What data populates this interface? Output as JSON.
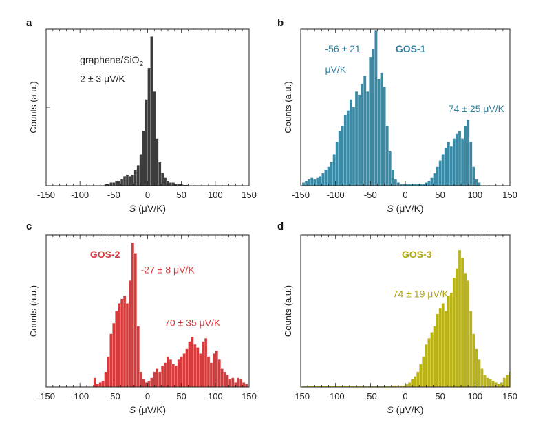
{
  "chart_data": [
    {
      "panel_label": "a",
      "type": "bar",
      "color": "#3c3c3c",
      "xlabel_italic": "S",
      "xlabel_rest": " (μV/K)",
      "ylabel": "Counts (a.u.)",
      "xlim": [
        -150,
        150
      ],
      "xticks": [
        -150,
        -100,
        -50,
        0,
        50,
        100,
        150
      ],
      "ylim": [
        0,
        1.0
      ],
      "bin_width": 4,
      "annotations": [
        {
          "text": "graphene/SiO",
          "sub": "2",
          "color": "#222222",
          "x": -100,
          "y": 0.78
        },
        {
          "text": "2 ± 3 μV/K",
          "color": "#222222",
          "x": -100,
          "y": 0.66
        }
      ],
      "bins": [
        [
          -62,
          0.01
        ],
        [
          -58,
          0.01
        ],
        [
          -54,
          0.02
        ],
        [
          -50,
          0.02
        ],
        [
          -46,
          0.03
        ],
        [
          -42,
          0.03
        ],
        [
          -38,
          0.04
        ],
        [
          -34,
          0.06
        ],
        [
          -30,
          0.07
        ],
        [
          -26,
          0.06
        ],
        [
          -22,
          0.07
        ],
        [
          -18,
          0.1
        ],
        [
          -14,
          0.13
        ],
        [
          -10,
          0.2
        ],
        [
          -6,
          0.35
        ],
        [
          -2,
          0.55
        ],
        [
          2,
          0.75
        ],
        [
          6,
          0.95
        ],
        [
          10,
          0.6
        ],
        [
          14,
          0.3
        ],
        [
          18,
          0.15
        ],
        [
          22,
          0.08
        ],
        [
          26,
          0.05
        ],
        [
          30,
          0.03
        ],
        [
          34,
          0.02
        ],
        [
          38,
          0.02
        ],
        [
          42,
          0.01
        ],
        [
          46,
          0.01
        ],
        [
          50,
          0.01
        ],
        [
          54,
          0.005
        ],
        [
          58,
          0.005
        ]
      ]
    },
    {
      "panel_label": "b",
      "type": "bar",
      "color": "#3a8aa6",
      "xlabel_italic": "S",
      "xlabel_rest": " (μV/K)",
      "ylabel": "Counts (a.u.)",
      "xlim": [
        -150,
        150
      ],
      "xticks": [
        -150,
        -100,
        -50,
        0,
        50,
        100,
        150
      ],
      "ylim": [
        0,
        1.0
      ],
      "bin_width": 4,
      "annotations": [
        {
          "text": "GOS-1",
          "color": "#2f7f9c",
          "bold": true,
          "x": -14,
          "y": 0.85
        },
        {
          "text": "-56 ± 21",
          "color": "#2f7f9c",
          "x": -115,
          "y": 0.85
        },
        {
          "text": "μV/K",
          "color": "#2f7f9c",
          "x": -115,
          "y": 0.72
        },
        {
          "text": "74 ± 25 μV/K",
          "color": "#2f7f9c",
          "x": 62,
          "y": 0.47
        }
      ],
      "bins": [
        [
          -146,
          0.02
        ],
        [
          -142,
          0.03
        ],
        [
          -138,
          0.04
        ],
        [
          -134,
          0.05
        ],
        [
          -130,
          0.04
        ],
        [
          -126,
          0.05
        ],
        [
          -122,
          0.06
        ],
        [
          -118,
          0.08
        ],
        [
          -114,
          0.1
        ],
        [
          -110,
          0.12
        ],
        [
          -106,
          0.15
        ],
        [
          -102,
          0.2
        ],
        [
          -98,
          0.28
        ],
        [
          -94,
          0.35
        ],
        [
          -90,
          0.38
        ],
        [
          -86,
          0.45
        ],
        [
          -82,
          0.48
        ],
        [
          -78,
          0.55
        ],
        [
          -74,
          0.5
        ],
        [
          -70,
          0.6
        ],
        [
          -66,
          0.58
        ],
        [
          -62,
          0.65
        ],
        [
          -58,
          0.7
        ],
        [
          -54,
          0.6
        ],
        [
          -50,
          0.82
        ],
        [
          -46,
          0.87
        ],
        [
          -42,
          0.99
        ],
        [
          -38,
          0.68
        ],
        [
          -34,
          0.72
        ],
        [
          -30,
          0.63
        ],
        [
          -26,
          0.38
        ],
        [
          -22,
          0.22
        ],
        [
          -18,
          0.1
        ],
        [
          -14,
          0.04
        ],
        [
          -10,
          0.02
        ],
        [
          -6,
          0.01
        ],
        [
          -2,
          0.01
        ],
        [
          2,
          0.01
        ],
        [
          6,
          0.01
        ],
        [
          10,
          0.01
        ],
        [
          14,
          0.01
        ],
        [
          18,
          0.01
        ],
        [
          22,
          0.01
        ],
        [
          26,
          0.01
        ],
        [
          30,
          0.02
        ],
        [
          34,
          0.03
        ],
        [
          38,
          0.05
        ],
        [
          42,
          0.08
        ],
        [
          46,
          0.12
        ],
        [
          50,
          0.16
        ],
        [
          54,
          0.2
        ],
        [
          58,
          0.24
        ],
        [
          62,
          0.28
        ],
        [
          66,
          0.25
        ],
        [
          70,
          0.3
        ],
        [
          74,
          0.33
        ],
        [
          78,
          0.35
        ],
        [
          82,
          0.3
        ],
        [
          86,
          0.38
        ],
        [
          90,
          0.42
        ],
        [
          94,
          0.28
        ],
        [
          98,
          0.12
        ],
        [
          102,
          0.04
        ],
        [
          106,
          0.02
        ]
      ]
    },
    {
      "panel_label": "c",
      "type": "bar",
      "color": "#d53a3c",
      "xlabel_italic": "S",
      "xlabel_rest": " (μV/K)",
      "ylabel": "Counts (a.u.)",
      "xlim": [
        -150,
        150
      ],
      "xticks": [
        -150,
        -100,
        -50,
        0,
        50,
        100,
        150
      ],
      "ylim": [
        0,
        1.0
      ],
      "bin_width": 4,
      "annotations": [
        {
          "text": "GOS-2",
          "color": "#d53a3c",
          "bold": true,
          "x": -85,
          "y": 0.85
        },
        {
          "text": "-27 ± 8 μV/K",
          "color": "#d53a3c",
          "x": -10,
          "y": 0.75
        },
        {
          "text": "70 ± 35 μV/K",
          "color": "#d53a3c",
          "x": 25,
          "y": 0.4
        }
      ],
      "bins": [
        [
          -78,
          0.06
        ],
        [
          -74,
          0.02
        ],
        [
          -70,
          0.03
        ],
        [
          -66,
          0.04
        ],
        [
          -62,
          0.1
        ],
        [
          -58,
          0.2
        ],
        [
          -54,
          0.35
        ],
        [
          -50,
          0.42
        ],
        [
          -46,
          0.5
        ],
        [
          -42,
          0.55
        ],
        [
          -38,
          0.58
        ],
        [
          -34,
          0.6
        ],
        [
          -30,
          0.55
        ],
        [
          -26,
          0.7
        ],
        [
          -22,
          0.95
        ],
        [
          -18,
          0.88
        ],
        [
          -14,
          0.4
        ],
        [
          -10,
          0.1
        ],
        [
          -6,
          0.05
        ],
        [
          -2,
          0.03
        ],
        [
          2,
          0.04
        ],
        [
          6,
          0.06
        ],
        [
          10,
          0.1
        ],
        [
          14,
          0.12
        ],
        [
          18,
          0.1
        ],
        [
          22,
          0.14
        ],
        [
          26,
          0.16
        ],
        [
          30,
          0.2
        ],
        [
          34,
          0.18
        ],
        [
          38,
          0.15
        ],
        [
          42,
          0.14
        ],
        [
          46,
          0.18
        ],
        [
          50,
          0.2
        ],
        [
          54,
          0.22
        ],
        [
          58,
          0.25
        ],
        [
          62,
          0.3
        ],
        [
          66,
          0.33
        ],
        [
          70,
          0.28
        ],
        [
          74,
          0.26
        ],
        [
          78,
          0.22
        ],
        [
          82,
          0.3
        ],
        [
          86,
          0.32
        ],
        [
          90,
          0.2
        ],
        [
          94,
          0.16
        ],
        [
          98,
          0.22
        ],
        [
          102,
          0.24
        ],
        [
          106,
          0.18
        ],
        [
          110,
          0.12
        ],
        [
          114,
          0.1
        ],
        [
          118,
          0.08
        ],
        [
          122,
          0.05
        ],
        [
          126,
          0.06
        ],
        [
          130,
          0.03
        ],
        [
          134,
          0.06
        ],
        [
          138,
          0.05
        ],
        [
          142,
          0.03
        ],
        [
          146,
          0.02
        ]
      ]
    },
    {
      "panel_label": "d",
      "type": "bar",
      "color": "#b9b317",
      "xlabel_italic": "S",
      "xlabel_rest": " (μV/K)",
      "ylabel": "Counts (a.u.)",
      "xlim": [
        -150,
        150
      ],
      "xticks": [
        -150,
        -100,
        -50,
        0,
        50,
        100,
        150
      ],
      "ylim": [
        0,
        1.0
      ],
      "bin_width": 4,
      "annotations": [
        {
          "text": "GOS-3",
          "color": "#b0a70e",
          "bold": true,
          "x": -5,
          "y": 0.85
        },
        {
          "text": "74 ± 19 μV/K",
          "color": "#b0a70e",
          "x": -18,
          "y": 0.59
        }
      ],
      "bins": [
        [
          -146,
          0.005
        ],
        [
          -142,
          0.005
        ],
        [
          -138,
          0.005
        ],
        [
          -134,
          0.005
        ],
        [
          -130,
          0.005
        ],
        [
          -126,
          0.005
        ],
        [
          -122,
          0.005
        ],
        [
          -118,
          0.005
        ],
        [
          -114,
          0.005
        ],
        [
          -110,
          0.005
        ],
        [
          -106,
          0.005
        ],
        [
          -102,
          0.005
        ],
        [
          -98,
          0.005
        ],
        [
          -94,
          0.005
        ],
        [
          -90,
          0.005
        ],
        [
          -86,
          0.005
        ],
        [
          -82,
          0.005
        ],
        [
          -78,
          0.005
        ],
        [
          -74,
          0.005
        ],
        [
          -70,
          0.005
        ],
        [
          -66,
          0.005
        ],
        [
          -62,
          0.005
        ],
        [
          -58,
          0.005
        ],
        [
          -54,
          0.005
        ],
        [
          -50,
          0.005
        ],
        [
          -46,
          0.005
        ],
        [
          -42,
          0.005
        ],
        [
          -38,
          0.005
        ],
        [
          -34,
          0.005
        ],
        [
          -30,
          0.005
        ],
        [
          -26,
          0.005
        ],
        [
          -22,
          0.005
        ],
        [
          -18,
          0.01
        ],
        [
          -14,
          0.01
        ],
        [
          -10,
          0.01
        ],
        [
          -6,
          0.01
        ],
        [
          -2,
          0.01
        ],
        [
          2,
          0.02
        ],
        [
          6,
          0.03
        ],
        [
          10,
          0.05
        ],
        [
          14,
          0.07
        ],
        [
          18,
          0.1
        ],
        [
          22,
          0.15
        ],
        [
          26,
          0.2
        ],
        [
          30,
          0.28
        ],
        [
          34,
          0.32
        ],
        [
          38,
          0.36
        ],
        [
          42,
          0.4
        ],
        [
          46,
          0.48
        ],
        [
          50,
          0.52
        ],
        [
          54,
          0.55
        ],
        [
          58,
          0.5
        ],
        [
          62,
          0.6
        ],
        [
          66,
          0.62
        ],
        [
          70,
          0.72
        ],
        [
          74,
          0.78
        ],
        [
          78,
          0.9
        ],
        [
          82,
          0.85
        ],
        [
          86,
          0.75
        ],
        [
          90,
          0.7
        ],
        [
          94,
          0.5
        ],
        [
          98,
          0.35
        ],
        [
          102,
          0.25
        ],
        [
          106,
          0.18
        ],
        [
          110,
          0.12
        ],
        [
          114,
          0.08
        ],
        [
          118,
          0.06
        ],
        [
          122,
          0.05
        ],
        [
          126,
          0.04
        ],
        [
          130,
          0.03
        ],
        [
          134,
          0.02
        ],
        [
          138,
          0.03
        ],
        [
          142,
          0.06
        ],
        [
          146,
          0.08
        ],
        [
          150,
          0.1
        ]
      ]
    }
  ]
}
